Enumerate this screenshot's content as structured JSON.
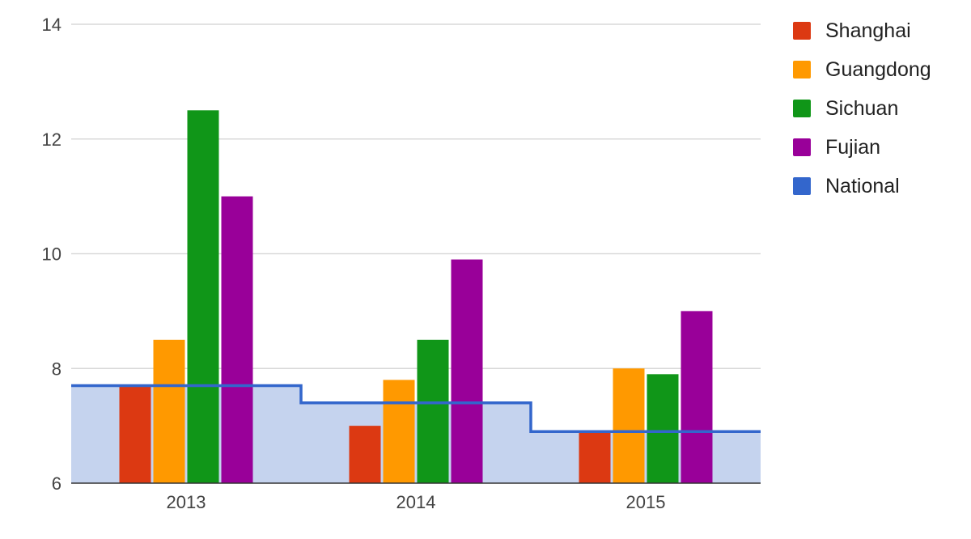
{
  "chart_data": {
    "type": "bar",
    "title": "",
    "xlabel": "",
    "ylabel": "",
    "categories": [
      "2013",
      "2014",
      "2015"
    ],
    "ylim": [
      6,
      14
    ],
    "y_ticks": [
      "6",
      "8",
      "10",
      "12",
      "14"
    ],
    "grid": true,
    "legend_position": "right",
    "series": [
      {
        "name": "Shanghai",
        "color": "#dc3912",
        "values": [
          7.7,
          7.0,
          6.9
        ]
      },
      {
        "name": "Guangdong",
        "color": "#ff9900",
        "values": [
          8.5,
          7.8,
          8.0
        ]
      },
      {
        "name": "Sichuan",
        "color": "#109618",
        "values": [
          12.5,
          8.5,
          7.9
        ]
      },
      {
        "name": "Fujian",
        "color": "#990099",
        "values": [
          11.0,
          9.9,
          9.0
        ]
      }
    ],
    "line_series": {
      "name": "National",
      "type": "stepped-area",
      "color": "#3366cc",
      "fill": "#c5d3ee",
      "values": [
        7.7,
        7.4,
        6.9
      ]
    }
  }
}
